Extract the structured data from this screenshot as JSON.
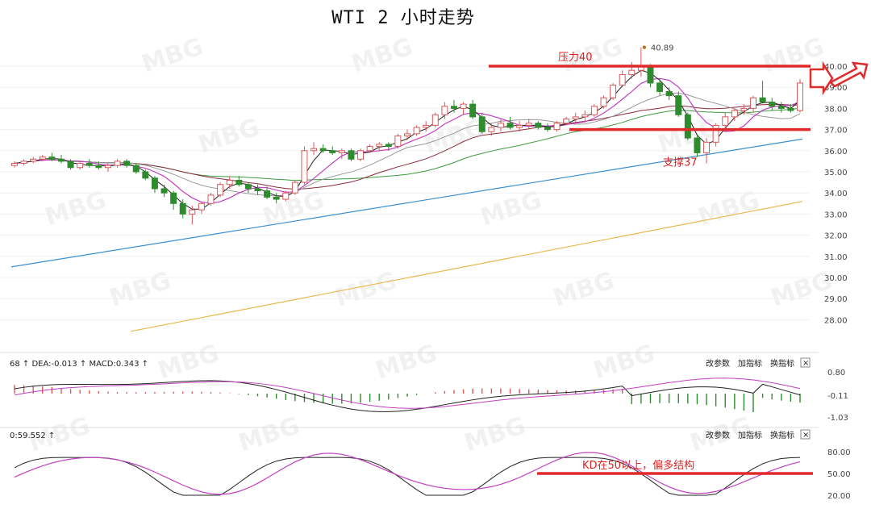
{
  "title": "WTI 2 小时走势",
  "watermark": "MBG",
  "chart_data": {
    "type": "candlestick",
    "ylim": [
      27,
      41
    ],
    "y_ticks": [
      "40.00",
      "39.00",
      "38.00",
      "37.00",
      "36.00",
      "35.00",
      "34.00",
      "33.00",
      "32.00",
      "31.00",
      "30.00",
      "29.00",
      "28.00"
    ],
    "candles": [
      [
        35.3,
        35.5,
        35.2,
        35.4
      ],
      [
        35.4,
        35.6,
        35.3,
        35.5
      ],
      [
        35.5,
        35.7,
        35.4,
        35.6
      ],
      [
        35.6,
        35.8,
        35.5,
        35.7
      ],
      [
        35.7,
        35.9,
        35.5,
        35.6
      ],
      [
        35.6,
        35.8,
        35.4,
        35.5
      ],
      [
        35.5,
        35.6,
        35.1,
        35.2
      ],
      [
        35.2,
        35.5,
        35.1,
        35.4
      ],
      [
        35.4,
        35.6,
        35.2,
        35.3
      ],
      [
        35.3,
        35.5,
        35.1,
        35.2
      ],
      [
        35.2,
        35.4,
        35.0,
        35.3
      ],
      [
        35.3,
        35.6,
        35.2,
        35.5
      ],
      [
        35.5,
        35.6,
        35.2,
        35.3
      ],
      [
        35.3,
        35.4,
        34.9,
        35.0
      ],
      [
        35.0,
        35.1,
        34.6,
        34.7
      ],
      [
        34.7,
        34.8,
        34.0,
        34.2
      ],
      [
        34.2,
        34.4,
        33.8,
        34.0
      ],
      [
        34.0,
        34.1,
        33.2,
        33.5
      ],
      [
        33.5,
        33.7,
        32.8,
        33.0
      ],
      [
        33.0,
        33.4,
        32.5,
        33.2
      ],
      [
        33.2,
        33.6,
        33.0,
        33.5
      ],
      [
        33.5,
        34.0,
        33.4,
        33.9
      ],
      [
        33.9,
        34.5,
        33.8,
        34.4
      ],
      [
        34.4,
        34.8,
        34.2,
        34.6
      ],
      [
        34.6,
        34.8,
        34.3,
        34.4
      ],
      [
        34.4,
        34.5,
        34.0,
        34.2
      ],
      [
        34.2,
        34.4,
        33.9,
        34.1
      ],
      [
        34.1,
        34.3,
        33.7,
        33.8
      ],
      [
        33.8,
        34.0,
        33.5,
        33.7
      ],
      [
        33.7,
        34.1,
        33.6,
        34.0
      ],
      [
        34.0,
        34.6,
        33.9,
        34.5
      ],
      [
        34.5,
        36.2,
        34.4,
        36.0
      ],
      [
        36.0,
        36.4,
        35.8,
        36.1
      ],
      [
        36.1,
        36.3,
        35.9,
        36.0
      ],
      [
        36.0,
        36.2,
        35.8,
        35.9
      ],
      [
        35.9,
        36.1,
        35.6,
        36.0
      ],
      [
        36.0,
        36.1,
        35.5,
        35.6
      ],
      [
        35.6,
        36.1,
        35.5,
        36.0
      ],
      [
        36.0,
        36.3,
        35.9,
        36.2
      ],
      [
        36.2,
        36.4,
        36.0,
        36.3
      ],
      [
        36.3,
        36.4,
        36.0,
        36.2
      ],
      [
        36.2,
        36.8,
        36.1,
        36.7
      ],
      [
        36.7,
        37.0,
        36.5,
        36.8
      ],
      [
        36.8,
        37.2,
        36.7,
        37.1
      ],
      [
        37.1,
        37.4,
        36.9,
        37.2
      ],
      [
        37.2,
        37.8,
        37.1,
        37.7
      ],
      [
        37.7,
        38.3,
        37.5,
        38.1
      ],
      [
        38.1,
        38.4,
        37.8,
        38.0
      ],
      [
        38.0,
        38.3,
        37.7,
        38.2
      ],
      [
        38.2,
        38.4,
        37.5,
        37.6
      ],
      [
        37.6,
        37.8,
        36.8,
        36.9
      ],
      [
        36.9,
        37.3,
        36.7,
        37.1
      ],
      [
        37.1,
        37.5,
        36.9,
        37.3
      ],
      [
        37.3,
        37.6,
        37.0,
        37.1
      ],
      [
        37.1,
        37.4,
        36.9,
        37.2
      ],
      [
        37.2,
        37.5,
        37.0,
        37.3
      ],
      [
        37.3,
        37.4,
        37.0,
        37.1
      ],
      [
        37.1,
        37.3,
        36.9,
        37.0
      ],
      [
        37.0,
        37.4,
        36.9,
        37.3
      ],
      [
        37.3,
        37.6,
        37.2,
        37.5
      ],
      [
        37.5,
        37.8,
        37.3,
        37.6
      ],
      [
        37.6,
        37.9,
        37.4,
        37.7
      ],
      [
        37.7,
        38.2,
        37.6,
        38.1
      ],
      [
        38.1,
        38.6,
        38.0,
        38.5
      ],
      [
        38.5,
        39.2,
        38.4,
        39.1
      ],
      [
        39.1,
        39.8,
        39.0,
        39.6
      ],
      [
        39.6,
        40.2,
        39.4,
        39.8
      ],
      [
        39.8,
        40.89,
        39.5,
        40.0
      ],
      [
        40.0,
        40.1,
        39.0,
        39.2
      ],
      [
        39.2,
        39.4,
        38.6,
        38.8
      ],
      [
        38.8,
        39.0,
        38.4,
        38.6
      ],
      [
        38.6,
        38.8,
        37.6,
        37.7
      ],
      [
        37.7,
        37.8,
        36.5,
        36.6
      ],
      [
        36.6,
        36.8,
        35.7,
        35.9
      ],
      [
        35.9,
        36.6,
        35.4,
        36.4
      ],
      [
        36.4,
        37.3,
        36.2,
        37.2
      ],
      [
        37.2,
        37.8,
        37.0,
        37.6
      ],
      [
        37.6,
        38.0,
        37.4,
        37.9
      ],
      [
        37.9,
        38.2,
        37.7,
        38.0
      ],
      [
        38.0,
        38.6,
        37.8,
        38.5
      ],
      [
        38.5,
        39.3,
        38.3,
        38.3
      ],
      [
        38.3,
        38.5,
        37.9,
        38.1
      ],
      [
        38.1,
        38.3,
        37.8,
        38.0
      ],
      [
        38.0,
        38.2,
        37.8,
        37.9
      ],
      [
        37.9,
        39.4,
        37.8,
        39.2
      ]
    ],
    "annotations": {
      "resistance_label": "压力40",
      "resistance_level": 40,
      "support_label": "支撑37",
      "support_level": 37,
      "high_label": "40.89",
      "kd_label": "KD在50以上，偏多结构",
      "kd_level": 50
    },
    "macd_panel": {
      "header": "68 ↑ DEA:-0.013 ↑ MACD:0.343 ↑",
      "ticks": [
        "0.80",
        "-0.11",
        "-1.03"
      ]
    },
    "kd_panel": {
      "header": "0:59.552 ↑",
      "ticks": [
        "80.00",
        "50.00",
        "20.00"
      ]
    },
    "panel_buttons": [
      "改参数",
      "加指标",
      "换指标"
    ]
  },
  "colors": {
    "up": "#d8595b",
    "down": "#2e8b2e",
    "annotation": "#e12a2a",
    "ma5": "#222222",
    "ma10": "#c23fc2",
    "ma20": "#999999",
    "ma30": "#8b2c3c",
    "ma60": "#3c9b3c",
    "ma120": "#3a8fd0",
    "ma250": "#e8b84a"
  }
}
